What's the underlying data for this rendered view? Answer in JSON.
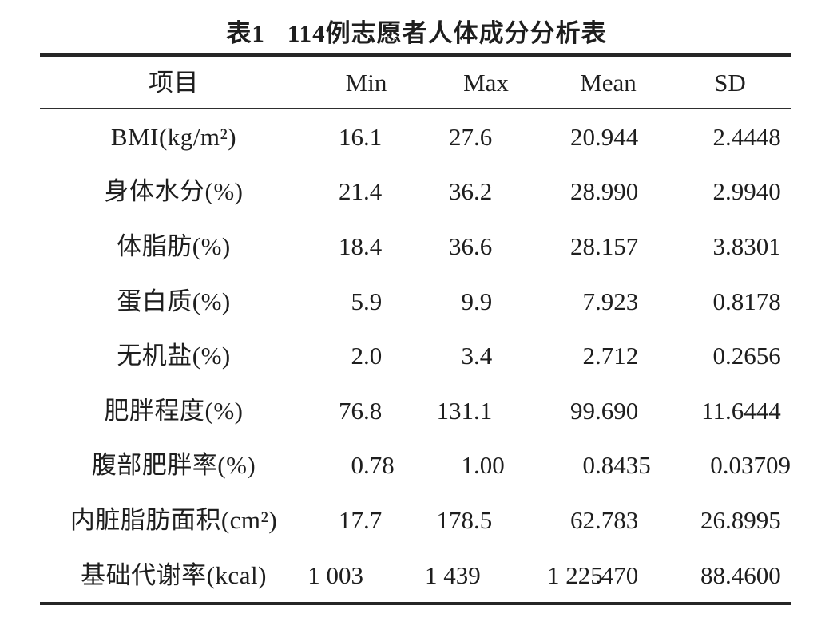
{
  "title": {
    "label": "表1",
    "text": "114例志愿者人体成分分析表"
  },
  "table": {
    "columns": [
      "项目",
      "Min",
      "Max",
      "Mean",
      "SD"
    ],
    "rows": [
      {
        "label": "BMI(kg/m²)",
        "min": "16.1",
        "max": "27.6",
        "mean": "20.944",
        "sd": "2.4448"
      },
      {
        "label": "身体水分(%)",
        "min": "21.4",
        "max": "36.2",
        "mean": "28.990",
        "sd": "2.9940"
      },
      {
        "label": "体脂肪(%)",
        "min": "18.4",
        "max": "36.6",
        "mean": "28.157",
        "sd": "3.8301"
      },
      {
        "label": "蛋白质(%)",
        "min": "5.9",
        "max": "9.9",
        "mean": "7.923",
        "sd": "0.8178"
      },
      {
        "label": "无机盐(%)",
        "min": "2.0",
        "max": "3.4",
        "mean": "2.712",
        "sd": "0.2656"
      },
      {
        "label": "肥胖程度(%)",
        "min": "76.8",
        "max": "131.1",
        "mean": "99.690",
        "sd": "11.6444"
      },
      {
        "label": "腹部肥胖率(%)",
        "min": "0.78",
        "max": "1.00",
        "mean": "0.8435",
        "sd": "0.03709"
      },
      {
        "label": "内脏脂肪面积(cm²)",
        "min": "17.7",
        "max": "178.5",
        "mean": "62.783",
        "sd": "26.8995"
      },
      {
        "label": "基础代谢率(kcal)",
        "min": "1 003",
        "max": "1 439",
        "mean": "1 225.470",
        "sd": "88.4600"
      }
    ]
  },
  "colors": {
    "text": "#1e1e1e",
    "rule": "#262626",
    "background": "#ffffff"
  }
}
